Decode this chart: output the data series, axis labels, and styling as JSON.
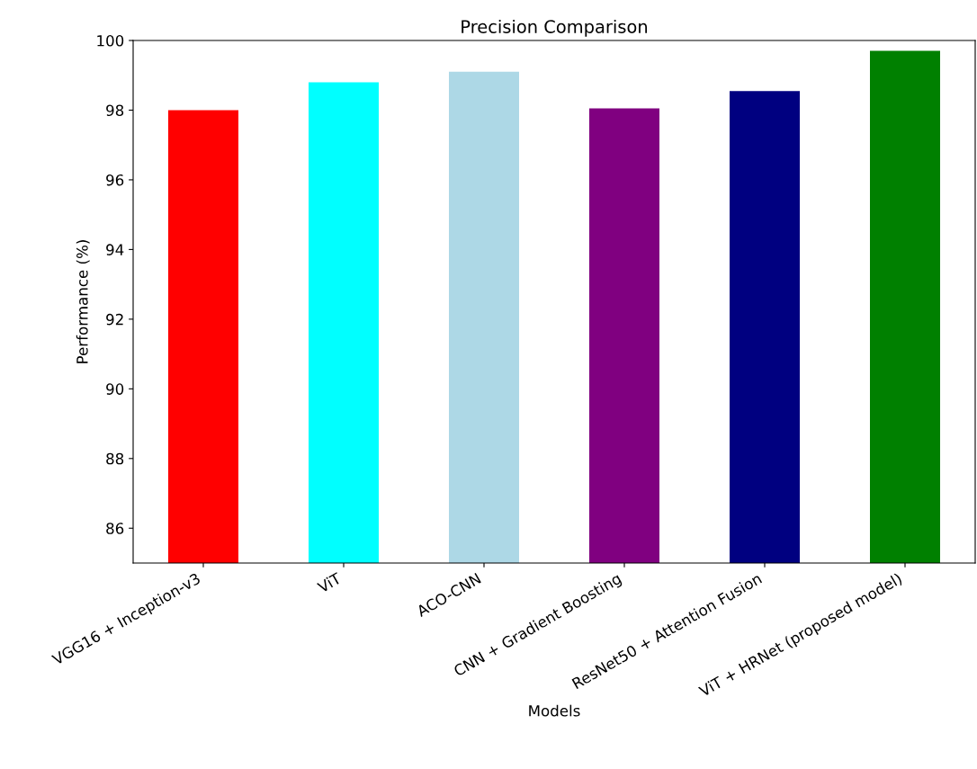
{
  "chart_data": {
    "type": "bar",
    "title": "Precision Comparison",
    "xlabel": "Models",
    "ylabel": "Performance (%)",
    "categories": [
      "VGG16 + Inception-v3",
      "ViT",
      "ACO-CNN",
      "CNN + Gradient Boosting",
      "ResNet50 + Attention Fusion",
      "ViT + HRNet (proposed model)"
    ],
    "values": [
      98.0,
      98.8,
      99.1,
      98.05,
      98.55,
      99.7
    ],
    "colors": [
      "#ff0000",
      "#00ffff",
      "#add8e6",
      "#800080",
      "#000080",
      "#008000"
    ],
    "ylim": [
      85,
      100
    ],
    "yticks": [
      86,
      88,
      90,
      92,
      94,
      96,
      98,
      100
    ],
    "grid": false
  }
}
